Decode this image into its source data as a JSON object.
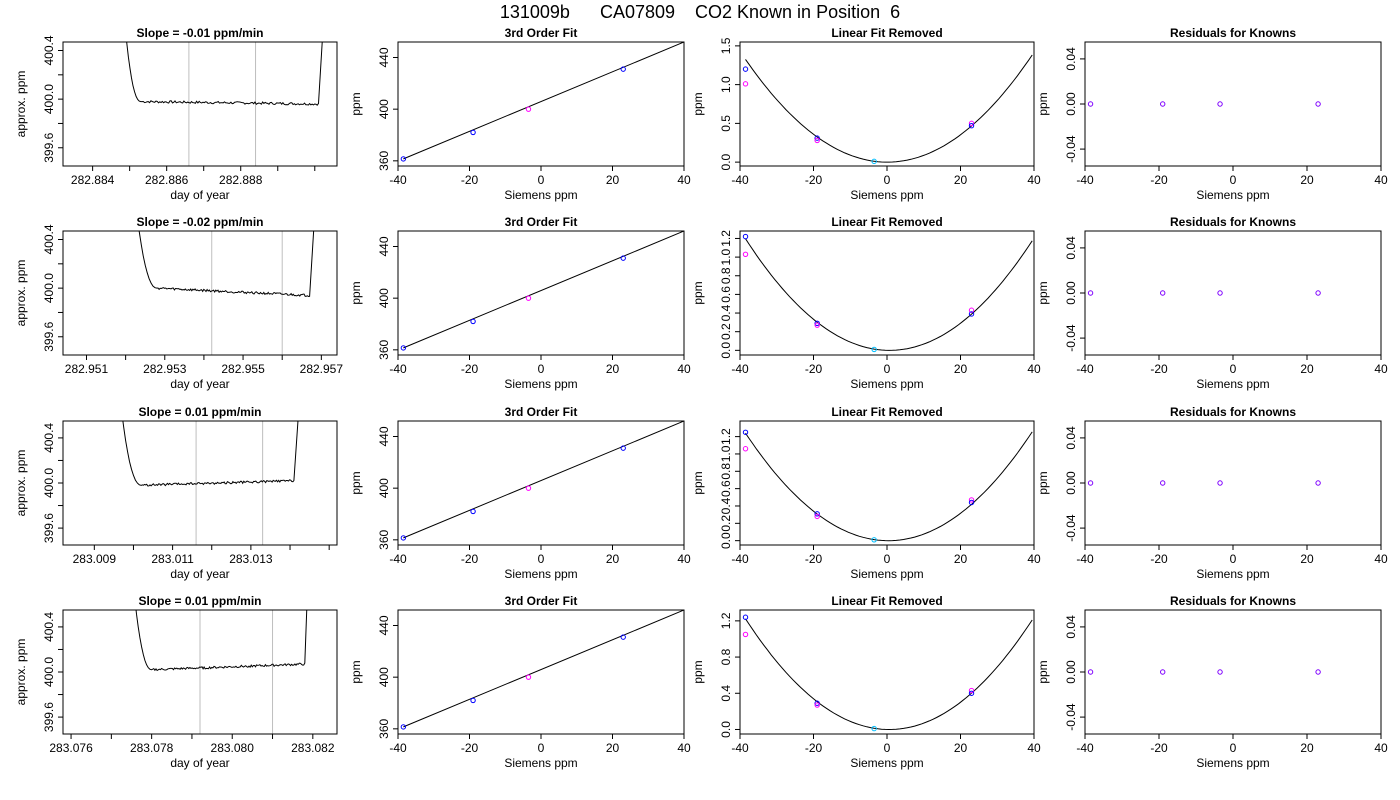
{
  "title": "131009b      CA07809    CO2 Known in Position  6",
  "colors": {
    "trace": "#000000",
    "guide": "#bebebe",
    "fit": "#000000",
    "pt_blue": "#0000ff",
    "pt_magenta": "#ff00ff",
    "pt_cyan": "#00bfff"
  },
  "chart_data": [
    {
      "type": "line",
      "panel": "slope",
      "title": "Slope =  -0.01  ppm/min",
      "xlabel": "day of year",
      "ylabel": "approx. ppm",
      "xlim": [
        282.8832,
        282.8906
      ],
      "ylim": [
        399.45,
        400.47
      ],
      "xticks": [
        282.884,
        282.885,
        282.886,
        282.887,
        282.888,
        282.889,
        282.89
      ],
      "xticklabels": [
        "282.884",
        "",
        "282.886",
        "",
        "282.888",
        "",
        ""
      ],
      "yticks": [
        399.6,
        399.8,
        400.0,
        400.2,
        400.4
      ],
      "yticklabels": [
        "399.6",
        "",
        "400.0",
        "",
        "400.4"
      ],
      "vlines": [
        282.8866,
        282.8884
      ],
      "trace": {
        "x0": 282.8848,
        "x_flat": 282.8853,
        "x1": 282.8901,
        "x2": 282.8903,
        "level": 399.98,
        "drift": -0.02
      }
    },
    {
      "type": "line",
      "panel": "fit",
      "title": "3rd Order Fit",
      "xlabel": "Siemens ppm",
      "ylabel": "ppm",
      "xlim": [
        -40,
        40
      ],
      "ylim": [
        356,
        452
      ],
      "xticks": [
        -40,
        -20,
        0,
        20,
        40
      ],
      "xticklabels": [
        "-40",
        "-20",
        "0",
        "20",
        "40"
      ],
      "yticks": [
        360,
        400,
        440
      ],
      "yticklabels": [
        "360",
        "400",
        "440"
      ],
      "line": [
        [
          -38.5,
          361.5
        ],
        [
          40,
          452
        ]
      ],
      "points": [
        {
          "x": -38.5,
          "y": 361.5
        },
        {
          "x": -19,
          "y": 382
        },
        {
          "x": -3.5,
          "y": 400
        },
        {
          "x": 23,
          "y": 431
        }
      ]
    },
    {
      "type": "scatter",
      "panel": "linear",
      "title": "Linear Fit Removed",
      "xlabel": "Siemens ppm",
      "ylabel": "ppm",
      "xlim": [
        -40,
        40
      ],
      "ylim": [
        -0.05,
        1.55
      ],
      "xticks": [
        -40,
        -20,
        0,
        20,
        40
      ],
      "xticklabels": [
        "-40",
        "-20",
        "0",
        "20",
        "40"
      ],
      "yticks": [
        0.0,
        0.5,
        1.0,
        1.5
      ],
      "yticklabels": [
        "0.0",
        "0.5",
        "1.0",
        "1.5"
      ],
      "curve": {
        "a": 0.00089,
        "b": -0.00017,
        "c": 0.0
      },
      "points": [
        {
          "x": -38.5,
          "y": 1.2
        },
        {
          "x": -38.5,
          "y": 1.01
        },
        {
          "x": -19,
          "y": 0.31
        },
        {
          "x": -19,
          "y": 0.28
        },
        {
          "x": -3.5,
          "y": 0.01
        },
        {
          "x": 23,
          "y": 0.5
        },
        {
          "x": 23,
          "y": 0.47
        }
      ]
    },
    {
      "type": "scatter",
      "panel": "resid",
      "title": "Residuals for Knowns",
      "xlabel": "Siemens ppm",
      "ylabel": "ppm",
      "xlim": [
        -40,
        40
      ],
      "ylim": [
        -0.055,
        0.055
      ],
      "xticks": [
        -40,
        -20,
        0,
        20,
        40
      ],
      "xticklabels": [
        "-40",
        "-20",
        "0",
        "20",
        "40"
      ],
      "yticks": [
        -0.04,
        0.0,
        0.04
      ],
      "yticklabels": [
        "-0.04",
        "0.00",
        "0.04"
      ],
      "points": [
        {
          "x": -38.5,
          "y": 0
        },
        {
          "x": -19,
          "y": 0
        },
        {
          "x": -3.5,
          "y": 0
        },
        {
          "x": 23,
          "y": 0
        }
      ]
    },
    {
      "type": "line",
      "panel": "slope",
      "title": "Slope =  -0.02  ppm/min",
      "xlabel": "day of year",
      "ylabel": "approx. ppm",
      "xlim": [
        282.9504,
        282.9574
      ],
      "ylim": [
        399.45,
        400.47
      ],
      "xticks": [
        282.951,
        282.952,
        282.953,
        282.954,
        282.955,
        282.956,
        282.957
      ],
      "xticklabels": [
        "282.951",
        "",
        "282.953",
        "",
        "282.955",
        "",
        "282.957"
      ],
      "yticks": [
        399.6,
        399.8,
        400.0,
        400.2,
        400.4
      ],
      "yticklabels": [
        "399.6",
        "",
        "400.0",
        "",
        "400.4"
      ],
      "vlines": [
        282.9542,
        282.956
      ],
      "trace": {
        "x0": 282.9522,
        "x_flat": 282.9528,
        "x1": 282.9567,
        "x2": 282.9569,
        "level": 400.0,
        "drift": -0.06
      }
    },
    {
      "type": "line",
      "panel": "fit",
      "title": "3rd Order Fit",
      "xlabel": "Siemens ppm",
      "ylabel": "ppm",
      "xlim": [
        -40,
        40
      ],
      "ylim": [
        356,
        452
      ],
      "xticks": [
        -40,
        -20,
        0,
        20,
        40
      ],
      "xticklabels": [
        "-40",
        "-20",
        "0",
        "20",
        "40"
      ],
      "yticks": [
        360,
        400,
        440
      ],
      "yticklabels": [
        "360",
        "400",
        "440"
      ],
      "line": [
        [
          -38.5,
          361.5
        ],
        [
          40,
          452
        ]
      ],
      "points": [
        {
          "x": -38.5,
          "y": 361.5
        },
        {
          "x": -19,
          "y": 382
        },
        {
          "x": -3.5,
          "y": 400
        },
        {
          "x": 23,
          "y": 431
        }
      ]
    },
    {
      "type": "scatter",
      "panel": "linear",
      "title": "Linear Fit Removed",
      "xlabel": "Siemens ppm",
      "ylabel": "ppm",
      "xlim": [
        -40,
        40
      ],
      "ylim": [
        -0.05,
        1.28
      ],
      "xticks": [
        -40,
        -20,
        0,
        20,
        40
      ],
      "xticklabels": [
        "-40",
        "-20",
        "0",
        "20",
        "40"
      ],
      "yticks": [
        0.0,
        0.2,
        0.4,
        0.6,
        0.8,
        1.0,
        1.2
      ],
      "yticklabels": [
        "0.0",
        "0.2",
        "0.4",
        "0.6",
        "0.8",
        "1.0",
        "1.2"
      ],
      "curve": {
        "a": 0.00078,
        "b": -0.00106,
        "c": 0.0
      },
      "points": [
        {
          "x": -38.5,
          "y": 1.22
        },
        {
          "x": -38.5,
          "y": 1.03
        },
        {
          "x": -19,
          "y": 0.29
        },
        {
          "x": -19,
          "y": 0.27
        },
        {
          "x": -3.5,
          "y": 0.01
        },
        {
          "x": 23,
          "y": 0.43
        },
        {
          "x": 23,
          "y": 0.39
        }
      ]
    },
    {
      "type": "scatter",
      "panel": "resid",
      "title": "Residuals for Knowns",
      "xlabel": "Siemens ppm",
      "ylabel": "ppm",
      "xlim": [
        -40,
        40
      ],
      "ylim": [
        -0.055,
        0.055
      ],
      "xticks": [
        -40,
        -20,
        0,
        20,
        40
      ],
      "xticklabels": [
        "-40",
        "-20",
        "0",
        "20",
        "40"
      ],
      "yticks": [
        -0.04,
        0.0,
        0.04
      ],
      "yticklabels": [
        "-0.04",
        "0.00",
        "0.04"
      ],
      "points": [
        {
          "x": -38.5,
          "y": 0
        },
        {
          "x": -19,
          "y": 0
        },
        {
          "x": -3.5,
          "y": 0
        },
        {
          "x": 23,
          "y": 0
        }
      ]
    },
    {
      "type": "line",
      "panel": "slope",
      "title": "Slope =  0.01  ppm/min",
      "xlabel": "day of year",
      "ylabel": "approx. ppm",
      "xlim": [
        283.0082,
        283.0152
      ],
      "ylim": [
        399.45,
        400.55
      ],
      "xticks": [
        283.009,
        283.01,
        283.011,
        283.012,
        283.013,
        283.014,
        283.015
      ],
      "xticklabels": [
        "283.009",
        "",
        "283.011",
        "",
        "283.013",
        "",
        ""
      ],
      "yticks": [
        399.6,
        399.8,
        400.0,
        400.2,
        400.4
      ],
      "yticklabels": [
        "399.6",
        "",
        "400.0",
        "",
        "400.4"
      ],
      "vlines": [
        283.0116,
        283.0133
      ],
      "trace": {
        "x0": 283.0096,
        "x_flat": 283.0102,
        "x1": 283.0141,
        "x2": 283.0143,
        "level": 399.98,
        "drift": 0.04
      }
    },
    {
      "type": "line",
      "panel": "fit",
      "title": "3rd Order Fit",
      "xlabel": "Siemens ppm",
      "ylabel": "ppm",
      "xlim": [
        -40,
        40
      ],
      "ylim": [
        356,
        452
      ],
      "xticks": [
        -40,
        -20,
        0,
        20,
        40
      ],
      "xticklabels": [
        "-40",
        "-20",
        "0",
        "20",
        "40"
      ],
      "yticks": [
        360,
        400,
        440
      ],
      "yticklabels": [
        "360",
        "400",
        "440"
      ],
      "line": [
        [
          -38.5,
          361.5
        ],
        [
          40,
          452
        ]
      ],
      "points": [
        {
          "x": -38.5,
          "y": 361.5
        },
        {
          "x": -19,
          "y": 382
        },
        {
          "x": -3.5,
          "y": 400
        },
        {
          "x": 23,
          "y": 431
        }
      ]
    },
    {
      "type": "scatter",
      "panel": "linear",
      "title": "Linear Fit Removed",
      "xlabel": "Siemens ppm",
      "ylabel": "ppm",
      "xlim": [
        -40,
        40
      ],
      "ylim": [
        -0.05,
        1.38
      ],
      "xticks": [
        -40,
        -20,
        0,
        20,
        40
      ],
      "xticklabels": [
        "-40",
        "-20",
        "0",
        "20",
        "40"
      ],
      "yticks": [
        0.0,
        0.2,
        0.4,
        0.6,
        0.8,
        1.0,
        1.2
      ],
      "yticklabels": [
        "0.0",
        "0.2",
        "0.4",
        "0.6",
        "0.8",
        "1.0",
        "1.2"
      ],
      "curve": {
        "a": 0.00082,
        "b": -0.00063,
        "c": 0.0
      },
      "points": [
        {
          "x": -38.5,
          "y": 1.25
        },
        {
          "x": -38.5,
          "y": 1.06
        },
        {
          "x": -19,
          "y": 0.31
        },
        {
          "x": -19,
          "y": 0.28
        },
        {
          "x": -3.5,
          "y": 0.01
        },
        {
          "x": 23,
          "y": 0.47
        },
        {
          "x": 23,
          "y": 0.44
        }
      ]
    },
    {
      "type": "scatter",
      "panel": "resid",
      "title": "Residuals for Knowns",
      "xlabel": "Siemens ppm",
      "ylabel": "ppm",
      "xlim": [
        -40,
        40
      ],
      "ylim": [
        -0.055,
        0.055
      ],
      "xticks": [
        -40,
        -20,
        0,
        20,
        40
      ],
      "xticklabels": [
        "-40",
        "-20",
        "0",
        "20",
        "40"
      ],
      "yticks": [
        -0.04,
        0.0,
        0.04
      ],
      "yticklabels": [
        "-0.04",
        "0.00",
        "0.04"
      ],
      "points": [
        {
          "x": -38.5,
          "y": 0
        },
        {
          "x": -19,
          "y": 0
        },
        {
          "x": -3.5,
          "y": 0
        },
        {
          "x": 23,
          "y": 0
        }
      ]
    },
    {
      "type": "line",
      "panel": "slope",
      "title": "Slope =  0.01  ppm/min",
      "xlabel": "day of year",
      "ylabel": "approx. ppm",
      "xlim": [
        283.0758,
        283.0826
      ],
      "ylim": [
        399.45,
        400.55
      ],
      "xticks": [
        283.076,
        283.077,
        283.078,
        283.079,
        283.08,
        283.081,
        283.082
      ],
      "xticklabels": [
        "283.076",
        "",
        "283.078",
        "",
        "283.080",
        "",
        "283.082"
      ],
      "yticks": [
        399.6,
        399.8,
        400.0,
        400.2,
        400.4
      ],
      "yticklabels": [
        "399.6",
        "",
        "400.0",
        "",
        "400.4"
      ],
      "vlines": [
        283.0792,
        283.081
      ],
      "trace": {
        "x0": 283.0775,
        "x_flat": 283.078,
        "x1": 283.0818,
        "x2": 283.0819,
        "level": 400.02,
        "drift": 0.05
      }
    },
    {
      "type": "line",
      "panel": "fit",
      "title": "3rd Order Fit",
      "xlabel": "Siemens ppm",
      "ylabel": "ppm",
      "xlim": [
        -40,
        40
      ],
      "ylim": [
        356,
        452
      ],
      "xticks": [
        -40,
        -20,
        0,
        20,
        40
      ],
      "xticklabels": [
        "-40",
        "-20",
        "0",
        "20",
        "40"
      ],
      "yticks": [
        360,
        400,
        440
      ],
      "yticklabels": [
        "360",
        "400",
        "440"
      ],
      "line": [
        [
          -38.5,
          361.5
        ],
        [
          40,
          452
        ]
      ],
      "points": [
        {
          "x": -38.5,
          "y": 361.5
        },
        {
          "x": -19,
          "y": 382
        },
        {
          "x": -3.5,
          "y": 400
        },
        {
          "x": 23,
          "y": 431
        }
      ]
    },
    {
      "type": "scatter",
      "panel": "linear",
      "title": "Linear Fit Removed",
      "xlabel": "Siemens ppm",
      "ylabel": "ppm",
      "xlim": [
        -40,
        40
      ],
      "ylim": [
        -0.05,
        1.32
      ],
      "xticks": [
        -40,
        -20,
        0,
        20,
        40
      ],
      "xticklabels": [
        "-40",
        "-20",
        "0",
        "20",
        "40"
      ],
      "yticks": [
        0.0,
        0.2,
        0.4,
        0.6,
        0.8,
        1.0,
        1.2
      ],
      "yticklabels": [
        "0.0",
        "0.4",
        "0.8",
        "1.2",
        "",
        "",
        ""
      ],
      "yticks_shown": [
        0.0,
        0.4,
        0.8,
        1.2
      ],
      "curve": {
        "a": 0.0008,
        "b": -0.00097,
        "c": 0.0
      },
      "points": [
        {
          "x": -38.5,
          "y": 1.24
        },
        {
          "x": -38.5,
          "y": 1.05
        },
        {
          "x": -19,
          "y": 0.29
        },
        {
          "x": -19,
          "y": 0.27
        },
        {
          "x": -3.5,
          "y": 0.01
        },
        {
          "x": 23,
          "y": 0.43
        },
        {
          "x": 23,
          "y": 0.4
        }
      ]
    },
    {
      "type": "scatter",
      "panel": "resid",
      "title": "Residuals for Knowns",
      "xlabel": "Siemens ppm",
      "ylabel": "ppm",
      "xlim": [
        -40,
        40
      ],
      "ylim": [
        -0.055,
        0.055
      ],
      "xticks": [
        -40,
        -20,
        0,
        20,
        40
      ],
      "xticklabels": [
        "-40",
        "-20",
        "0",
        "20",
        "40"
      ],
      "yticks": [
        -0.04,
        0.0,
        0.04
      ],
      "yticklabels": [
        "-0.04",
        "0.00",
        "0.04"
      ],
      "points": [
        {
          "x": -38.5,
          "y": 0
        },
        {
          "x": -19,
          "y": 0
        },
        {
          "x": -3.5,
          "y": 0
        },
        {
          "x": 23,
          "y": 0
        }
      ]
    }
  ]
}
